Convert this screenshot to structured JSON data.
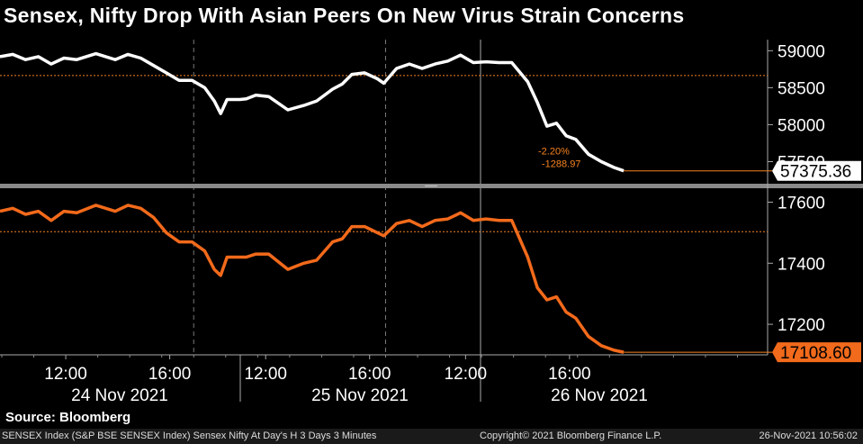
{
  "title": "Sensex, Nifty Drop With Asian Peers On New Virus Strain Concerns",
  "source": "Source: Bloomberg",
  "footer": {
    "left": "SENSEX Index (S&P BSE SENSEX Index) Sensex Nifty At Day's H 3 Days 3 Minutes",
    "middle": "Copyright© 2021 Bloomberg Finance L.P.",
    "right": "26-Nov-2021 10:56:02"
  },
  "colors": {
    "sensex": "#ffffff",
    "nifty": "#f26a1b",
    "ref_line": "#f58220",
    "background": "#000000"
  },
  "chart_data": [
    {
      "type": "line",
      "series": [
        {
          "name": "SENSEX",
          "x": [
            0,
            0.2,
            0.4,
            0.6,
            0.8,
            1.0,
            1.2,
            1.5,
            1.8,
            2.0,
            2.2,
            2.4,
            2.6,
            2.8,
            3.0,
            3.2,
            3.35,
            3.45,
            3.55,
            3.65,
            3.75,
            3.85,
            4.0,
            4.2,
            4.5,
            4.75,
            4.95,
            5.2,
            5.35,
            5.5,
            5.7,
            5.9,
            6.0,
            6.2,
            6.4,
            6.6,
            6.8,
            7.0,
            7.2,
            7.4,
            7.6,
            7.8,
            8.0,
            8.25,
            8.4,
            8.55,
            8.7,
            8.85,
            9.0,
            9.2,
            9.4,
            9.6,
            9.75
          ],
          "y": [
            58920,
            58950,
            58880,
            58920,
            58820,
            58900,
            58880,
            58960,
            58880,
            58950,
            58900,
            58800,
            58700,
            58600,
            58600,
            58500,
            58320,
            58150,
            58340,
            58340,
            58340,
            58350,
            58400,
            58380,
            58200,
            58260,
            58320,
            58480,
            58550,
            58680,
            58700,
            58620,
            58560,
            58760,
            58820,
            58760,
            58820,
            58860,
            58940,
            58840,
            58850,
            58840,
            58840,
            58580,
            58300,
            57980,
            58020,
            57850,
            57800,
            57600,
            57500,
            57420,
            57375.36
          ],
          "last_label": "57375.36"
        }
      ],
      "x_ticks": [
        {
          "x": 1,
          "label": "12:00"
        },
        {
          "x": 2.625,
          "label": "16:00"
        },
        {
          "x": 4.125,
          "label": "12:00"
        },
        {
          "x": 5.75,
          "label": "16:00"
        },
        {
          "x": 7.25,
          "label": "12:00"
        },
        {
          "x": 8.875,
          "label": "16:00"
        }
      ],
      "x_days": [
        "24 Nov 2021",
        "25 Nov 2021",
        "26 Nov 2021"
      ],
      "yticks": [
        57500,
        58000,
        58500,
        59000
      ],
      "ylim": [
        57250,
        59150
      ],
      "ref_line": 58664.33,
      "annotation": {
        "pct": "-2.20%",
        "chg": "-1288.97"
      }
    },
    {
      "type": "line",
      "series": [
        {
          "name": "NIFTY",
          "x": [
            0,
            0.2,
            0.4,
            0.6,
            0.8,
            1.0,
            1.2,
            1.5,
            1.8,
            2.0,
            2.2,
            2.4,
            2.6,
            2.8,
            3.0,
            3.2,
            3.35,
            3.45,
            3.55,
            3.65,
            3.75,
            3.85,
            4.0,
            4.2,
            4.5,
            4.75,
            4.95,
            5.2,
            5.35,
            5.5,
            5.7,
            5.9,
            6.0,
            6.2,
            6.4,
            6.6,
            6.8,
            7.0,
            7.2,
            7.4,
            7.6,
            7.8,
            8.0,
            8.25,
            8.4,
            8.55,
            8.7,
            8.85,
            9.0,
            9.2,
            9.4,
            9.6,
            9.75
          ],
          "y": [
            17570,
            17580,
            17560,
            17570,
            17540,
            17570,
            17565,
            17590,
            17570,
            17590,
            17580,
            17550,
            17500,
            17470,
            17470,
            17440,
            17380,
            17360,
            17420,
            17420,
            17420,
            17420,
            17430,
            17430,
            17380,
            17400,
            17410,
            17470,
            17480,
            17520,
            17520,
            17500,
            17490,
            17530,
            17540,
            17520,
            17540,
            17545,
            17565,
            17540,
            17545,
            17540,
            17540,
            17420,
            17320,
            17280,
            17290,
            17240,
            17220,
            17160,
            17130,
            17115,
            17108.6
          ],
          "last_label": "17108.60"
        }
      ],
      "yticks": [
        17200,
        17400,
        17600
      ],
      "ylim": [
        17100,
        17625
      ],
      "ref_line": 17503.35
    }
  ]
}
